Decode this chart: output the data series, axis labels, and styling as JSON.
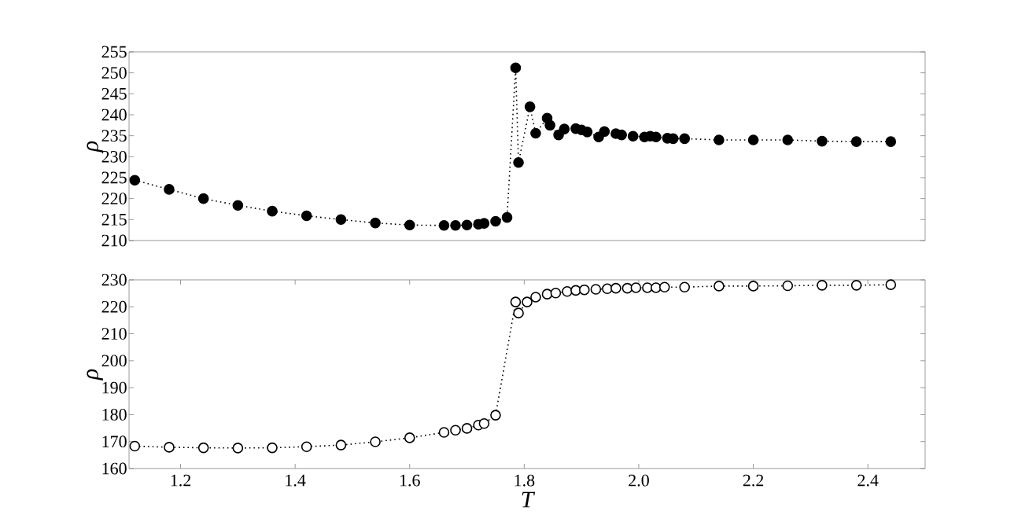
{
  "chart_data": [
    {
      "type": "line",
      "ylabel": "ρ",
      "xlim": [
        1.11,
        2.5
      ],
      "ylim": [
        210,
        255
      ],
      "yticks": [
        210,
        215,
        220,
        225,
        230,
        235,
        240,
        245,
        250,
        255
      ],
      "tick_labels": "y",
      "marker": "circle",
      "line_style": "dotted",
      "series": [
        {
          "color": "#000000",
          "x": [
            1.12,
            1.18,
            1.24,
            1.3,
            1.36,
            1.42,
            1.48,
            1.54,
            1.6,
            1.66,
            1.68,
            1.7,
            1.72,
            1.73,
            1.75,
            1.77,
            1.785,
            1.79,
            1.81,
            1.82,
            1.84,
            1.845,
            1.86,
            1.87,
            1.89,
            1.9,
            1.91,
            1.93,
            1.94,
            1.96,
            1.97,
            1.99,
            2.01,
            2.02,
            2.03,
            2.05,
            2.06,
            2.08,
            2.14,
            2.2,
            2.26,
            2.32,
            2.38,
            2.44
          ],
          "values": [
            224.4,
            222.2,
            220.0,
            218.4,
            217.0,
            215.9,
            215.0,
            214.2,
            213.7,
            213.6,
            213.6,
            213.7,
            213.9,
            214.1,
            214.6,
            215.5,
            251.2,
            228.6,
            241.9,
            235.6,
            239.2,
            237.5,
            235.2,
            236.6,
            236.7,
            236.4,
            235.9,
            234.7,
            236.0,
            235.5,
            235.2,
            234.9,
            234.7,
            234.9,
            234.7,
            234.4,
            234.3,
            234.3,
            234.0,
            234.0,
            234.0,
            233.7,
            233.6,
            233.6
          ]
        }
      ]
    },
    {
      "type": "line",
      "xlabel": "T",
      "ylabel": "ρ",
      "xlim": [
        1.11,
        2.5
      ],
      "ylim": [
        160,
        230
      ],
      "xticks": [
        1.2,
        1.4,
        1.6,
        1.8,
        {
          "value": 2.0,
          "label": "2.0"
        },
        2.2,
        2.4
      ],
      "yticks": [
        160,
        170,
        180,
        190,
        200,
        210,
        220,
        230
      ],
      "marker": "circle",
      "line_style": "dotted",
      "series": [
        {
          "color": "#000000",
          "x": [
            1.12,
            1.18,
            1.24,
            1.3,
            1.36,
            1.42,
            1.48,
            1.54,
            1.6,
            1.66,
            1.68,
            1.7,
            1.72,
            1.73,
            1.75,
            1.785,
            1.79,
            1.805,
            1.82,
            1.84,
            1.855,
            1.875,
            1.89,
            1.905,
            1.925,
            1.945,
            1.96,
            1.98,
            1.995,
            2.015,
            2.03,
            2.045,
            2.08,
            2.14,
            2.2,
            2.26,
            2.32,
            2.38,
            2.44
          ],
          "values": [
            168.3,
            167.9,
            167.7,
            167.6,
            167.7,
            168.1,
            168.7,
            169.9,
            171.4,
            173.4,
            174.2,
            174.9,
            176.1,
            176.7,
            179.8,
            221.8,
            217.7,
            221.8,
            223.6,
            224.7,
            225.1,
            225.7,
            226.1,
            226.3,
            226.5,
            226.7,
            226.9,
            226.9,
            227.1,
            227.1,
            227.1,
            227.3,
            227.3,
            227.7,
            227.7,
            227.8,
            228.0,
            228.0,
            228.2
          ]
        }
      ]
    }
  ]
}
